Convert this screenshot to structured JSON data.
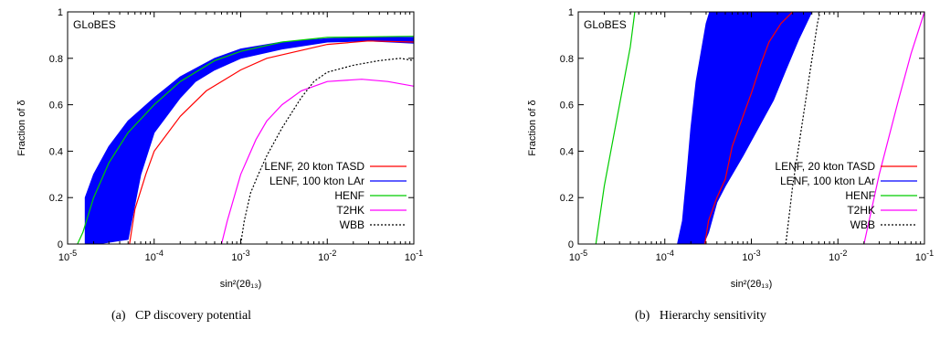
{
  "chart_data": [
    {
      "type": "line",
      "panel": "(a)",
      "caption_label": "(a)",
      "caption_text": "CP discovery potential",
      "watermark": "GLoBES",
      "xlabel": "sin²(2θ₁₃)",
      "ylabel": "Fraction of δ",
      "xscale": "log",
      "xlim": [
        1e-05,
        0.1
      ],
      "ylim": [
        0,
        1
      ],
      "xticks": [
        1e-05,
        0.0001,
        0.001,
        0.01,
        0.1
      ],
      "yticks": [
        0,
        0.2,
        0.4,
        0.6,
        0.8,
        1
      ],
      "ytick_labels": [
        "0",
        "0.2",
        "0.4",
        "0.6",
        "0.8",
        "1"
      ],
      "legend_position": "center-right",
      "band": {
        "name": "LENF, 100 kton LAr",
        "upper": [
          [
            1.6e-05,
            0.2
          ],
          [
            2e-05,
            0.3
          ],
          [
            3e-05,
            0.42
          ],
          [
            5e-05,
            0.53
          ],
          [
            0.0001,
            0.63
          ],
          [
            0.0002,
            0.72
          ],
          [
            0.0005,
            0.8
          ],
          [
            0.001,
            0.84
          ],
          [
            0.003,
            0.87
          ],
          [
            0.01,
            0.885
          ],
          [
            0.03,
            0.89
          ],
          [
            0.1,
            0.89
          ]
        ],
        "lower": [
          [
            0.1,
            0.865
          ],
          [
            0.03,
            0.875
          ],
          [
            0.01,
            0.87
          ],
          [
            0.003,
            0.84
          ],
          [
            0.001,
            0.8
          ],
          [
            0.0005,
            0.75
          ],
          [
            0.0003,
            0.7
          ],
          [
            0.0002,
            0.63
          ],
          [
            0.0001,
            0.48
          ],
          [
            7e-05,
            0.3
          ],
          [
            5e-05,
            0.02
          ],
          [
            2.2e-05,
            0.0
          ],
          [
            1.6e-05,
            0.0
          ]
        ]
      },
      "series": [
        {
          "name": "LENF, 20 kton TASD",
          "color": "#ff0000",
          "style": "solid",
          "points": [
            [
              5.2e-05,
              0.0
            ],
            [
              6e-05,
              0.15
            ],
            [
              8e-05,
              0.3
            ],
            [
              0.0001,
              0.4
            ],
            [
              0.0002,
              0.55
            ],
            [
              0.0004,
              0.66
            ],
            [
              0.001,
              0.75
            ],
            [
              0.002,
              0.8
            ],
            [
              0.01,
              0.86
            ],
            [
              0.03,
              0.875
            ],
            [
              0.1,
              0.87
            ]
          ]
        },
        {
          "name": "LENF, 100 kton LAr",
          "color": "#0000ff",
          "style": "solid",
          "points": []
        },
        {
          "name": "HENF",
          "color": "#00cc00",
          "style": "solid",
          "points": [
            [
              1.3e-05,
              0.0
            ],
            [
              1.5e-05,
              0.05
            ],
            [
              2e-05,
              0.2
            ],
            [
              3e-05,
              0.35
            ],
            [
              5e-05,
              0.48
            ],
            [
              0.0001,
              0.6
            ],
            [
              0.0002,
              0.7
            ],
            [
              0.0005,
              0.79
            ],
            [
              0.001,
              0.83
            ],
            [
              0.003,
              0.87
            ],
            [
              0.01,
              0.89
            ],
            [
              0.1,
              0.895
            ]
          ]
        },
        {
          "name": "T2HK",
          "color": "#ff00ff",
          "style": "solid",
          "points": [
            [
              0.0006,
              0.0
            ],
            [
              0.0007,
              0.1
            ],
            [
              0.001,
              0.3
            ],
            [
              0.0015,
              0.45
            ],
            [
              0.002,
              0.53
            ],
            [
              0.003,
              0.6
            ],
            [
              0.005,
              0.66
            ],
            [
              0.01,
              0.7
            ],
            [
              0.025,
              0.71
            ],
            [
              0.05,
              0.7
            ],
            [
              0.1,
              0.68
            ]
          ]
        },
        {
          "name": "WBB",
          "color": "#000000",
          "style": "dotted",
          "points": [
            [
              0.001,
              0.0
            ],
            [
              0.0011,
              0.1
            ],
            [
              0.0013,
              0.22
            ],
            [
              0.0016,
              0.3
            ],
            [
              0.002,
              0.38
            ],
            [
              0.003,
              0.5
            ],
            [
              0.005,
              0.63
            ],
            [
              0.007,
              0.7
            ],
            [
              0.01,
              0.74
            ],
            [
              0.02,
              0.77
            ],
            [
              0.04,
              0.79
            ],
            [
              0.07,
              0.8
            ],
            [
              0.1,
              0.79
            ]
          ]
        }
      ]
    },
    {
      "type": "line",
      "panel": "(b)",
      "caption_label": "(b)",
      "caption_text": "Hierarchy sensitivity",
      "watermark": "GLoBES",
      "xlabel": "sin²(2θ₁₃)",
      "ylabel": "Fraction of δ",
      "xscale": "log",
      "xlim": [
        1e-05,
        0.1
      ],
      "ylim": [
        0,
        1
      ],
      "xticks": [
        1e-05,
        0.0001,
        0.001,
        0.01,
        0.1
      ],
      "yticks": [
        0,
        0.2,
        0.4,
        0.6,
        0.8,
        1
      ],
      "ytick_labels": [
        "0",
        "0.2",
        "0.4",
        "0.6",
        "0.8",
        "1"
      ],
      "legend_position": "center-right",
      "band": {
        "name": "LENF, 100 kton LAr",
        "upper": [
          [
            0.00014,
            0.0
          ],
          [
            0.00016,
            0.1
          ],
          [
            0.00018,
            0.3
          ],
          [
            0.0002,
            0.5
          ],
          [
            0.00023,
            0.7
          ],
          [
            0.00027,
            0.85
          ],
          [
            0.0003,
            0.95
          ],
          [
            0.00033,
            1.0
          ]
        ],
        "lower": [
          [
            0.005,
            1.0
          ],
          [
            0.0035,
            0.88
          ],
          [
            0.0025,
            0.75
          ],
          [
            0.0018,
            0.62
          ],
          [
            0.0012,
            0.5
          ],
          [
            0.0008,
            0.38
          ],
          [
            0.0005,
            0.25
          ],
          [
            0.0004,
            0.18
          ],
          [
            0.00032,
            0.05
          ],
          [
            0.00028,
            0.0
          ]
        ]
      },
      "series": [
        {
          "name": "LENF, 20 kton TASD",
          "color": "#ff0000",
          "style": "solid",
          "points": [
            [
              0.00029,
              0.0
            ],
            [
              0.00032,
              0.1
            ],
            [
              0.0004,
              0.2
            ],
            [
              0.0005,
              0.28
            ],
            [
              0.0006,
              0.42
            ],
            [
              0.0008,
              0.55
            ],
            [
              0.001,
              0.65
            ],
            [
              0.0013,
              0.78
            ],
            [
              0.0016,
              0.87
            ],
            [
              0.0022,
              0.95
            ],
            [
              0.003,
              1.0
            ]
          ]
        },
        {
          "name": "LENF, 100 kton LAr",
          "color": "#0000ff",
          "style": "solid",
          "points": []
        },
        {
          "name": "HENF",
          "color": "#00cc00",
          "style": "solid",
          "points": [
            [
              1.6e-05,
              0.0
            ],
            [
              2e-05,
              0.25
            ],
            [
              3e-05,
              0.6
            ],
            [
              4e-05,
              0.85
            ],
            [
              4.5e-05,
              1.0
            ]
          ]
        },
        {
          "name": "T2HK",
          "color": "#ff00ff",
          "style": "solid",
          "points": [
            [
              0.02,
              0.0
            ],
            [
              0.03,
              0.3
            ],
            [
              0.05,
              0.62
            ],
            [
              0.07,
              0.82
            ],
            [
              0.1,
              1.0
            ]
          ]
        },
        {
          "name": "WBB",
          "color": "#000000",
          "style": "dotted",
          "points": [
            [
              0.0025,
              0.0
            ],
            [
              0.003,
              0.25
            ],
            [
              0.0038,
              0.5
            ],
            [
              0.0048,
              0.75
            ],
            [
              0.0058,
              0.95
            ],
            [
              0.0062,
              1.0
            ]
          ]
        }
      ]
    }
  ]
}
